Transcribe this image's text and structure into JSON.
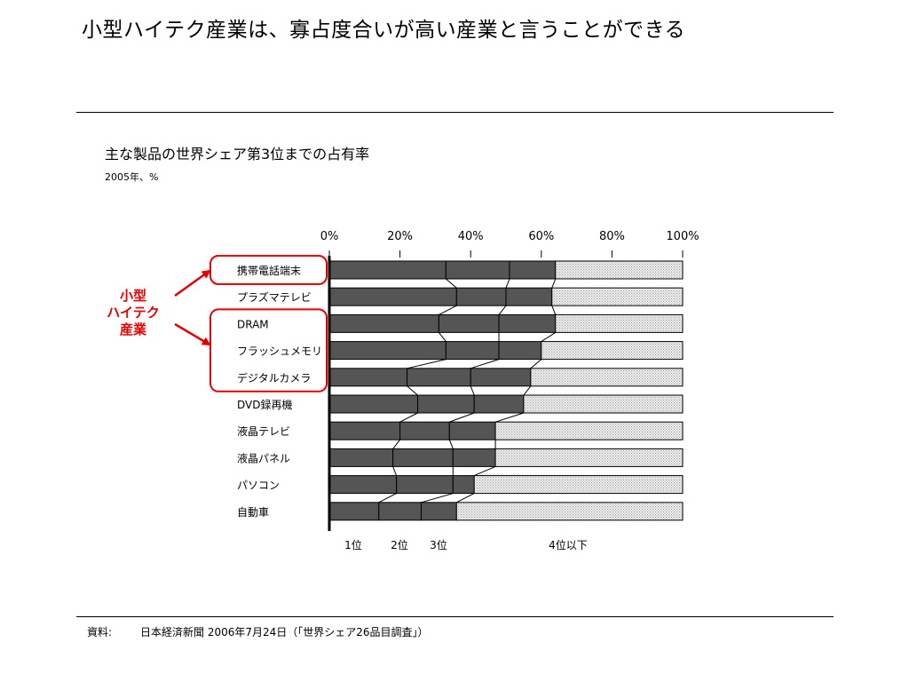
{
  "slide": {
    "title": "小型ハイテク産業は、寡占度合いが高い産業と言うことができる",
    "footnote_label": "資料:",
    "footnote_text": "日本経済新聞 2006年7月24日（「世界シェア26品目調査」）"
  },
  "annotation": {
    "group_label_lines": [
      "小型",
      "ハイテク",
      "産業"
    ],
    "color": "#e60000"
  },
  "colors": {
    "dark_segment": "#555555",
    "light_segment": "#e4e4e4"
  },
  "chart_data": {
    "type": "bar",
    "orientation": "horizontal",
    "stacked": true,
    "title": "主な製品の世界シェア第3位までの占有率",
    "subtitle": "2005年、%",
    "xlim": [
      0,
      100
    ],
    "x_ticks": [
      "0%",
      "20%",
      "40%",
      "60%",
      "80%",
      "100%"
    ],
    "x_tick_values": [
      0,
      20,
      40,
      60,
      80,
      100
    ],
    "categories": [
      "携帯電話端末",
      "プラズマテレビ",
      "DRAM",
      "フラッシュメモリ",
      "デジタルカメラ",
      "DVD録再機",
      "液晶テレビ",
      "液晶パネル",
      "パソコン",
      "自動車"
    ],
    "highlighted_groups": [
      [
        0
      ],
      [
        2,
        3,
        4
      ]
    ],
    "series": [
      {
        "name": "1位",
        "values": [
          33,
          36,
          31,
          33,
          22,
          25,
          20,
          18,
          19,
          14
        ]
      },
      {
        "name": "2位",
        "values": [
          18,
          14,
          17,
          15,
          18,
          16,
          14,
          17,
          16,
          12
        ]
      },
      {
        "name": "3位",
        "values": [
          13,
          13,
          16,
          12,
          17,
          14,
          13,
          12,
          6,
          10
        ]
      },
      {
        "name": "4位以下",
        "values": [
          36,
          37,
          36,
          40,
          43,
          45,
          53,
          53,
          59,
          64
        ]
      }
    ]
  }
}
